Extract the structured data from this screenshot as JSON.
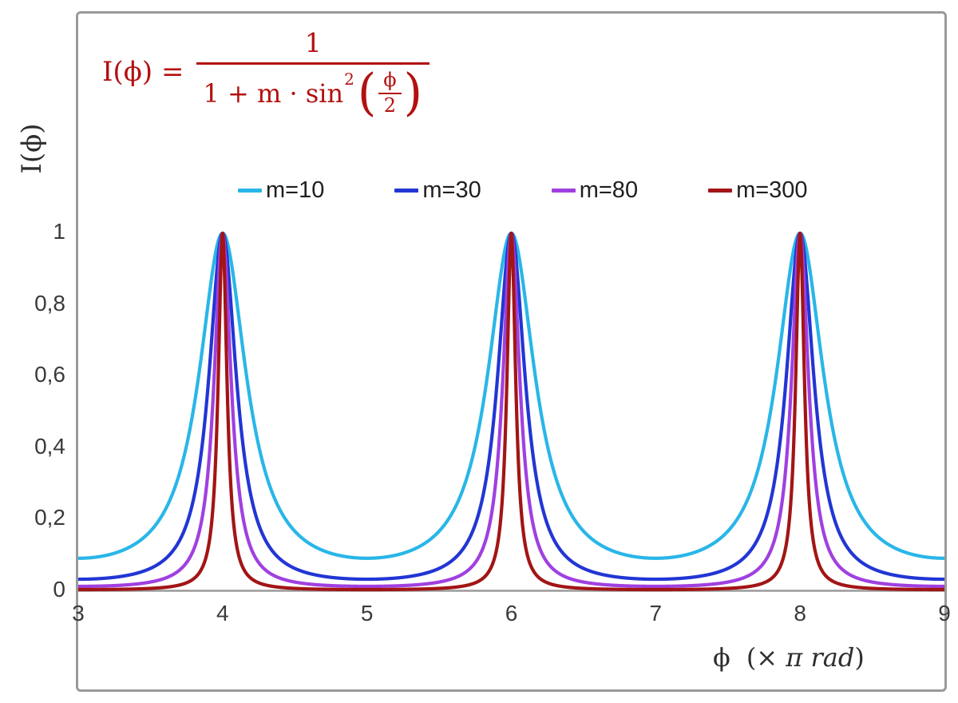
{
  "formula": {
    "lhs": "I(ϕ) =",
    "numerator": "1",
    "denominator_text": "1 + m · sin",
    "exponent": "2",
    "open_paren": "(",
    "close_paren": ")",
    "inner_numerator": "ϕ",
    "inner_denominator": "2",
    "color": "#b31010"
  },
  "legend": {
    "items": [
      {
        "label": "m=10",
        "color": "#29b6e8"
      },
      {
        "label": "m=30",
        "color": "#2236d4"
      },
      {
        "label": "m=80",
        "color": "#a040e0"
      },
      {
        "label": "m=300",
        "color": "#a21515"
      }
    ]
  },
  "axes": {
    "y_title": "I(ϕ)",
    "x_title_symbol": "ϕ",
    "x_title_open": "(× ",
    "x_title_italic": "π rad",
    "x_title_close": ")",
    "y_tick_labels": [
      "1",
      "0,8",
      "0,6",
      "0,4",
      "0,2",
      "0"
    ],
    "y_tick_values": [
      1,
      0.8,
      0.6,
      0.4,
      0.2,
      0
    ],
    "x_tick_labels": [
      "3",
      "4",
      "5",
      "6",
      "7",
      "8",
      "9"
    ]
  },
  "chart_data": {
    "type": "line",
    "title": "",
    "xlabel": "ϕ (× π rad)",
    "ylabel": "I(ϕ)",
    "xlim": [
      3,
      9
    ],
    "ylim": [
      0,
      1
    ],
    "x_ticks": [
      3,
      4,
      5,
      6,
      7,
      8,
      9
    ],
    "y_ticks": [
      0,
      0.2,
      0.4,
      0.6,
      0.8,
      1
    ],
    "y_tick_labels": [
      "0",
      "0,2",
      "0,4",
      "0,6",
      "0,8",
      "1"
    ],
    "function": "I(x) = 1 / (1 + m * sin^2(x*pi/2)), x = phase ϕ in units of π rad",
    "series": [
      {
        "name": "m=10",
        "m": 10,
        "color": "#29b6e8"
      },
      {
        "name": "m=30",
        "m": 30,
        "color": "#2236d4"
      },
      {
        "name": "m=80",
        "m": 80,
        "color": "#a040e0"
      },
      {
        "name": "m=300",
        "m": 300,
        "color": "#a21515"
      }
    ],
    "peaks_x": [
      4,
      6,
      8
    ],
    "peak_value": 1,
    "min_values_by_series": [
      0.0909,
      0.0323,
      0.0123,
      0.0033
    ],
    "grid": false,
    "legend_position": "top-center",
    "axis_line_color": "#9a9a9a"
  }
}
